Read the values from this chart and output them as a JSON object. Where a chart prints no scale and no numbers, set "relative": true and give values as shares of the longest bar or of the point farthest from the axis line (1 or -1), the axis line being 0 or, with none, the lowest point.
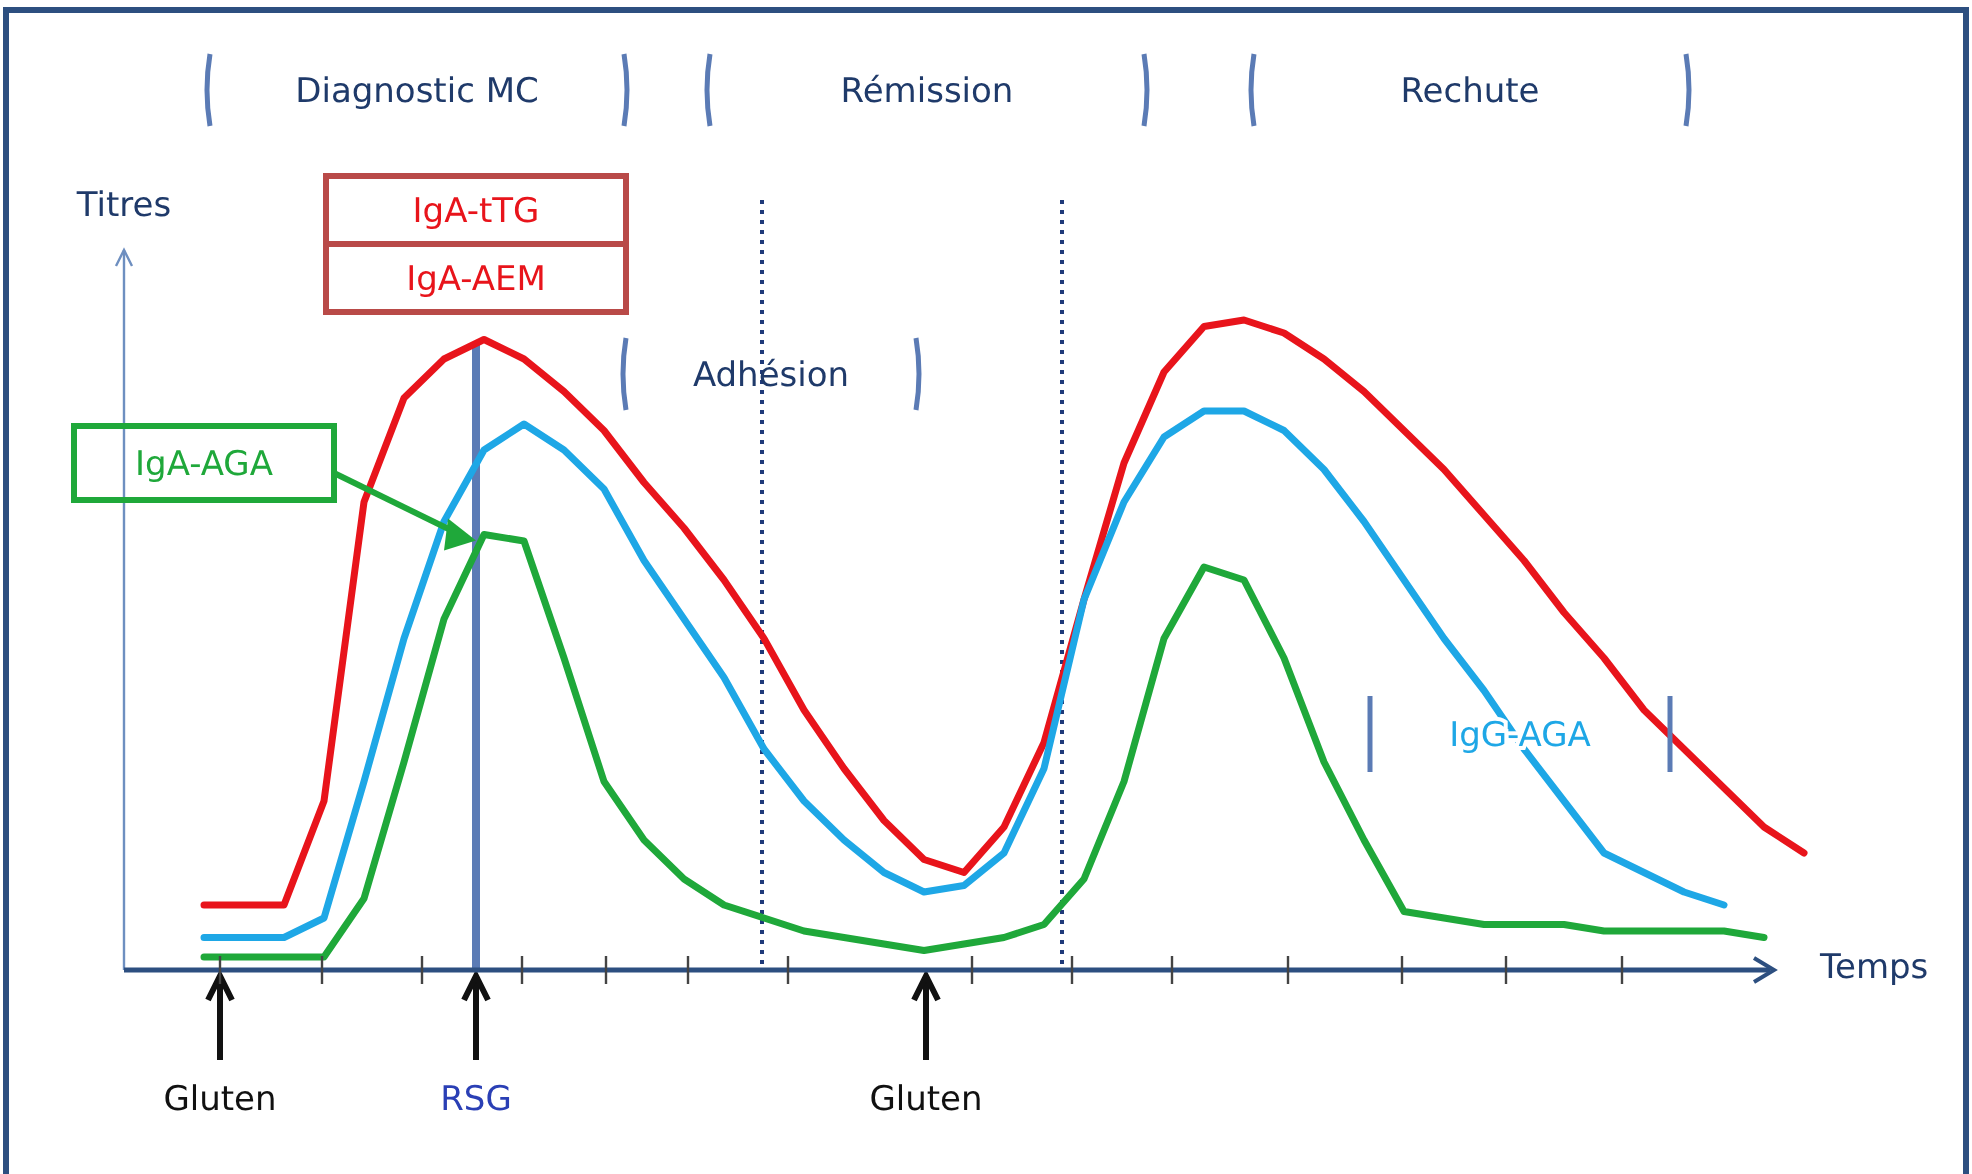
{
  "chart_data": {
    "type": "line",
    "relative": true,
    "xlabel": "Temps",
    "ylabel": "Titres",
    "categories": [
      null,
      null,
      null,
      null,
      null,
      null,
      null,
      null,
      null,
      null,
      null,
      null,
      null,
      null,
      null,
      null,
      null,
      null,
      null,
      null,
      null,
      null,
      null,
      null,
      null,
      null,
      null,
      null,
      null,
      null,
      null,
      null,
      null,
      null,
      null,
      null,
      null,
      null,
      null,
      null,
      null,
      null,
      null
    ],
    "series": [
      {
        "name": "IgA-tTG",
        "color": "#e8141b",
        "values": [
          null,
          null,
          0.1,
          0.1,
          0.1,
          0.26,
          0.72,
          0.88,
          0.94,
          0.97,
          0.94,
          0.89,
          0.83,
          0.75,
          0.68,
          0.6,
          0.51,
          0.4,
          0.31,
          0.23,
          0.17,
          0.15,
          0.22,
          0.35,
          0.57,
          0.78,
          0.92,
          0.99,
          1,
          0.98,
          0.94,
          0.89,
          0.83,
          0.77,
          0.7,
          0.63,
          0.55,
          0.48,
          0.4,
          0.34,
          0.28,
          0.22,
          0.18
        ]
      },
      {
        "name": "IgG-AGA",
        "color": "#1ea7e6",
        "values": [
          null,
          null,
          0.05,
          0.05,
          0.05,
          0.08,
          0.29,
          0.51,
          0.69,
          0.8,
          0.84,
          0.8,
          0.74,
          0.63,
          0.54,
          0.45,
          0.34,
          0.26,
          0.2,
          0.15,
          0.12,
          0.13,
          0.18,
          0.31,
          0.57,
          0.72,
          0.82,
          0.86,
          0.86,
          0.83,
          0.77,
          0.69,
          0.6,
          0.51,
          0.43,
          0.34,
          0.26,
          0.18,
          0.15,
          0.12,
          0.1,
          null,
          null
        ]
      },
      {
        "name": "IgA-AGA",
        "color": "#1fa83a",
        "values": [
          null,
          null,
          0.02,
          0.02,
          0.02,
          0.02,
          0.11,
          0.32,
          0.54,
          0.67,
          0.66,
          0.48,
          0.29,
          0.2,
          0.14,
          0.1,
          0.08,
          0.06,
          0.05,
          0.04,
          0.03,
          0.04,
          0.05,
          0.07,
          0.14,
          0.29,
          0.51,
          0.62,
          0.6,
          0.48,
          0.32,
          0.2,
          0.09,
          0.08,
          0.07,
          0.07,
          0.07,
          0.06,
          0.06,
          0.06,
          0.06,
          0.05,
          null
        ]
      }
    ],
    "annotations": [
      "IgA-AEM",
      "Diagnostic MC",
      "Rémission",
      "Rechute",
      "Adhésion",
      "RSG",
      "Gluten",
      "Gluten"
    ]
  }
}
